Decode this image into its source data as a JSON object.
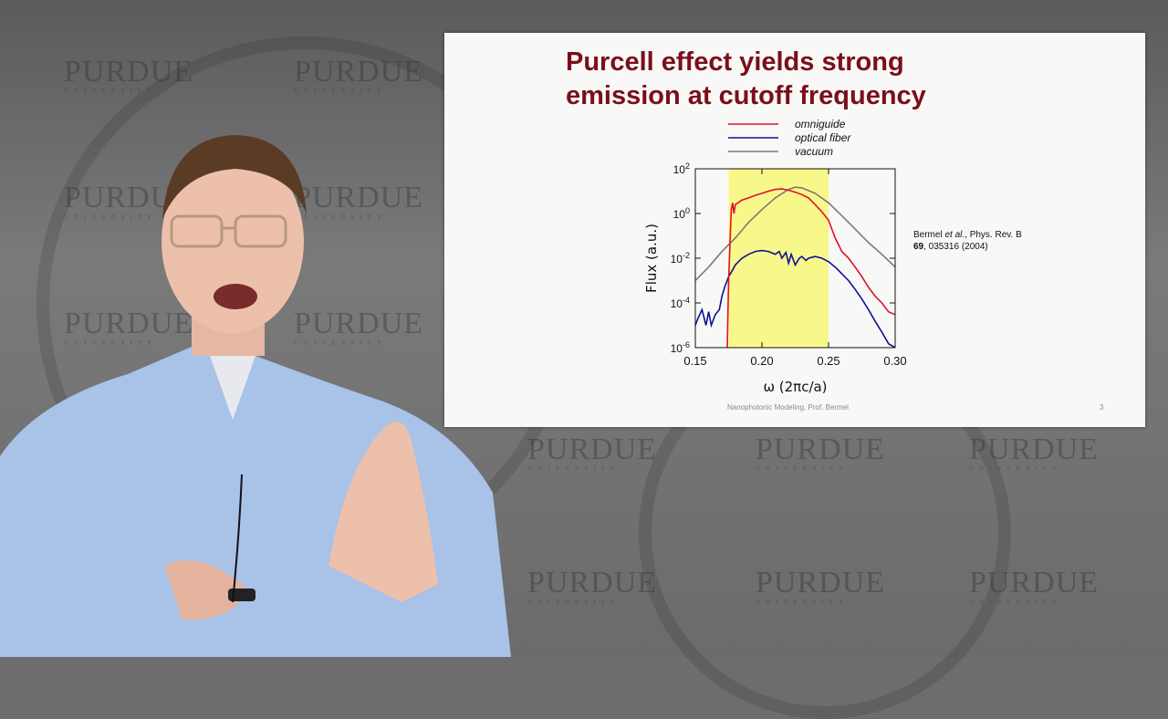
{
  "slide": {
    "title": "Purcell effect yields strong\nemission at cutoff frequency",
    "footer": "Nanophotonic Modeling, Prof. Bermel",
    "page_number": "3",
    "citation_line1": "Bermel et al., Phys. Rev. B",
    "citation_author": "Bermel ",
    "citation_etal": "et al.",
    "citation_journal": ", Phys. Rev. B",
    "citation_volume": "69",
    "citation_rest": ", 035316 (2004)"
  },
  "watermark": {
    "text": "PURDUE",
    "subtext": "UNIVERSITY"
  },
  "colors": {
    "title": "#7a0f1b",
    "omniguide": "#e0102a",
    "optical_fiber": "#10109a",
    "vacuum": "#7a7a7a",
    "highlight": "#f8f88a"
  },
  "chart_data": {
    "type": "line",
    "xlabel": "ω  (2πc/a)",
    "ylabel": "Flux  (a.u.)",
    "xlim": [
      0.15,
      0.3
    ],
    "ylim_log10": [
      -6,
      2
    ],
    "y_scale": "log",
    "x_ticks": [
      "0.15",
      "0.20",
      "0.25",
      "0.30"
    ],
    "y_ticks": [
      {
        "base": "10",
        "exp": "2"
      },
      {
        "base": "10",
        "exp": "0"
      },
      {
        "base": "10",
        "exp": "-2"
      },
      {
        "base": "10",
        "exp": "-4"
      },
      {
        "base": "10",
        "exp": "-6"
      }
    ],
    "highlight_band": [
      0.175,
      0.25
    ],
    "legend": "top",
    "series": [
      {
        "name": "omniguide",
        "x": [
          0.174,
          0.1745,
          0.175,
          0.176,
          0.177,
          0.178,
          0.179,
          0.18,
          0.182,
          0.185,
          0.19,
          0.195,
          0.2,
          0.205,
          0.21,
          0.215,
          0.22,
          0.225,
          0.23,
          0.235,
          0.24,
          0.245,
          0.25,
          0.255,
          0.26,
          0.265,
          0.27,
          0.275,
          0.28,
          0.285,
          0.29,
          0.295,
          0.3
        ],
        "y": [
          1e-06,
          5e-05,
          0.001,
          0.05,
          1.5,
          3,
          1,
          2.5,
          3,
          4,
          5,
          6.5,
          8,
          10,
          12,
          12.5,
          11,
          9,
          7,
          5,
          2.5,
          1.2,
          0.5,
          0.08,
          0.02,
          0.01,
          0.004,
          0.0015,
          0.0005,
          0.0002,
          0.0001,
          4e-05,
          3e-05
        ]
      },
      {
        "name": "optical fiber",
        "x": [
          0.15,
          0.152,
          0.155,
          0.158,
          0.16,
          0.162,
          0.165,
          0.168,
          0.17,
          0.172,
          0.175,
          0.178,
          0.18,
          0.185,
          0.19,
          0.195,
          0.2,
          0.205,
          0.21,
          0.213,
          0.215,
          0.218,
          0.22,
          0.222,
          0.225,
          0.228,
          0.23,
          0.233,
          0.235,
          0.24,
          0.245,
          0.25,
          0.255,
          0.26,
          0.265,
          0.27,
          0.275,
          0.28,
          0.285,
          0.29,
          0.295,
          0.3
        ],
        "y": [
          1e-05,
          2e-05,
          5e-05,
          1e-05,
          4e-05,
          1e-05,
          3e-05,
          5e-05,
          0.0002,
          0.0005,
          0.0015,
          0.003,
          0.005,
          0.01,
          0.015,
          0.02,
          0.022,
          0.02,
          0.015,
          0.02,
          0.01,
          0.018,
          0.006,
          0.015,
          0.005,
          0.01,
          0.012,
          0.008,
          0.01,
          0.012,
          0.01,
          0.007,
          0.004,
          0.002,
          0.001,
          0.0004,
          0.00015,
          5e-05,
          1.5e-05,
          5e-06,
          1.5e-06,
          1e-06
        ]
      },
      {
        "name": "vacuum",
        "x": [
          0.15,
          0.16,
          0.17,
          0.18,
          0.19,
          0.2,
          0.21,
          0.22,
          0.225,
          0.23,
          0.24,
          0.25,
          0.26,
          0.27,
          0.28,
          0.29,
          0.3
        ],
        "y": [
          0.001,
          0.004,
          0.02,
          0.08,
          0.4,
          1.5,
          5,
          12,
          15,
          14,
          8,
          3,
          0.8,
          0.2,
          0.05,
          0.015,
          0.004
        ]
      }
    ]
  }
}
